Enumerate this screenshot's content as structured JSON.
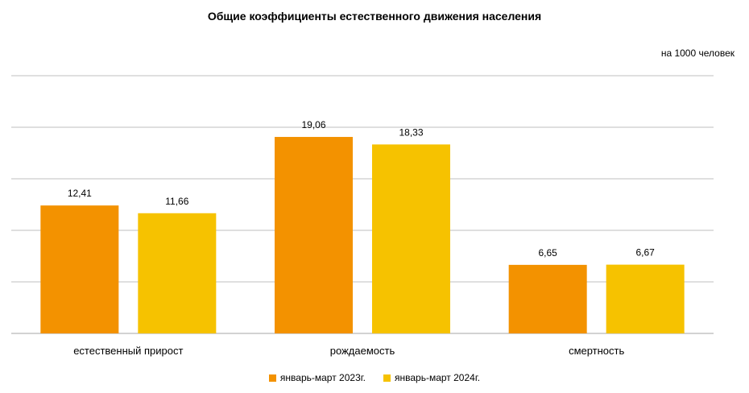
{
  "chart_data": {
    "type": "bar",
    "title": "Общие коэффициенты естественного  движения  населения",
    "unit_note": "на 1000  человек",
    "categories": [
      "естественный прирост",
      "рождаемость",
      "смертность"
    ],
    "series": [
      {
        "name": "январь-март 2023г.",
        "values": [
          12.41,
          19.06,
          6.65
        ],
        "labels": [
          "12,41",
          "19,06",
          "6,65"
        ],
        "color": "#F39200"
      },
      {
        "name": "январь-март 2024г.",
        "values": [
          11.66,
          18.33,
          6.67
        ],
        "labels": [
          "11,66",
          "18,33",
          "6,67"
        ],
        "color": "#F6C200"
      }
    ],
    "ylim": [
      0,
      25
    ],
    "grid": true,
    "legend_position": "bottom"
  }
}
